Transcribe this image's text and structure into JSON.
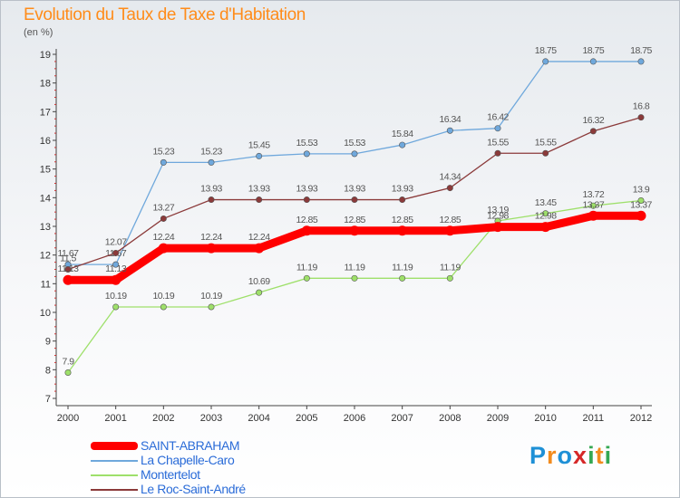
{
  "title": "Evolution du Taux de Taxe d'Habitation",
  "unit_label": "(en %)",
  "logo": {
    "letters": [
      "P",
      "r",
      "o",
      "x",
      "i",
      "t",
      "i"
    ],
    "colors": [
      "#1e90d6",
      "#f28c1e",
      "#1e90d6",
      "#d62828",
      "#35a853",
      "#f28c1e",
      "#35a853"
    ]
  },
  "chart_data": {
    "type": "line",
    "title": "Evolution du Taux de Taxe d'Habitation",
    "ylabel": "(en %)",
    "xlabel": "",
    "ylim": [
      7,
      19
    ],
    "yticks": [
      7,
      8,
      9,
      10,
      11,
      12,
      13,
      14,
      15,
      16,
      17,
      18,
      19
    ],
    "grid": false,
    "legend_position": "bottom-left",
    "x": [
      "2000",
      "2001",
      "2002",
      "2003",
      "2004",
      "2005",
      "2006",
      "2007",
      "2008",
      "2009",
      "2010",
      "2011",
      "2012"
    ],
    "series": [
      {
        "name": "SAINT-ABRAHAM",
        "color": "#ff0000",
        "emphasis": true,
        "values": [
          11.13,
          11.13,
          12.24,
          12.24,
          12.24,
          12.85,
          12.85,
          12.85,
          12.85,
          12.98,
          12.98,
          13.37,
          13.37
        ],
        "labels": [
          "11.13",
          "11.13",
          "12.24",
          "12.24",
          "12.24",
          "12.85",
          "12.85",
          "12.85",
          "12.85",
          "12.98",
          "12.98",
          "13.37",
          "13.37"
        ]
      },
      {
        "name": "La Chapelle-Caro",
        "color": "#6fa8dc",
        "values": [
          11.67,
          11.67,
          15.23,
          15.23,
          15.45,
          15.53,
          15.53,
          15.84,
          16.34,
          16.42,
          18.75,
          18.75,
          18.75
        ],
        "labels": [
          "11.67",
          "11.67",
          "15.23",
          "15.23",
          "15.45",
          "15.53",
          "15.53",
          "15.84",
          "16.34",
          "16.42",
          "18.75",
          "18.75",
          "18.75"
        ]
      },
      {
        "name": "Montertelot",
        "color": "#9ee06a",
        "values": [
          7.9,
          10.19,
          10.19,
          10.19,
          10.69,
          11.19,
          11.19,
          11.19,
          11.19,
          13.19,
          13.45,
          13.72,
          13.9
        ],
        "labels": [
          "7.9",
          "10.19",
          "10.19",
          "10.19",
          "10.69",
          "11.19",
          "11.19",
          "11.19",
          "11.19",
          "13.19",
          "13.45",
          "13.72",
          "13.9"
        ]
      },
      {
        "name": "Le Roc-Saint-André",
        "color": "#8b3a3a",
        "values": [
          11.5,
          12.07,
          13.27,
          13.93,
          13.93,
          13.93,
          13.93,
          13.93,
          14.34,
          15.55,
          15.55,
          16.32,
          16.8
        ],
        "labels": [
          "11.5",
          "12.07",
          "13.27",
          "13.93",
          "13.93",
          "13.93",
          "13.93",
          "13.93",
          "14.34",
          "15.55",
          "15.55",
          "16.32",
          "16.8"
        ]
      }
    ]
  }
}
